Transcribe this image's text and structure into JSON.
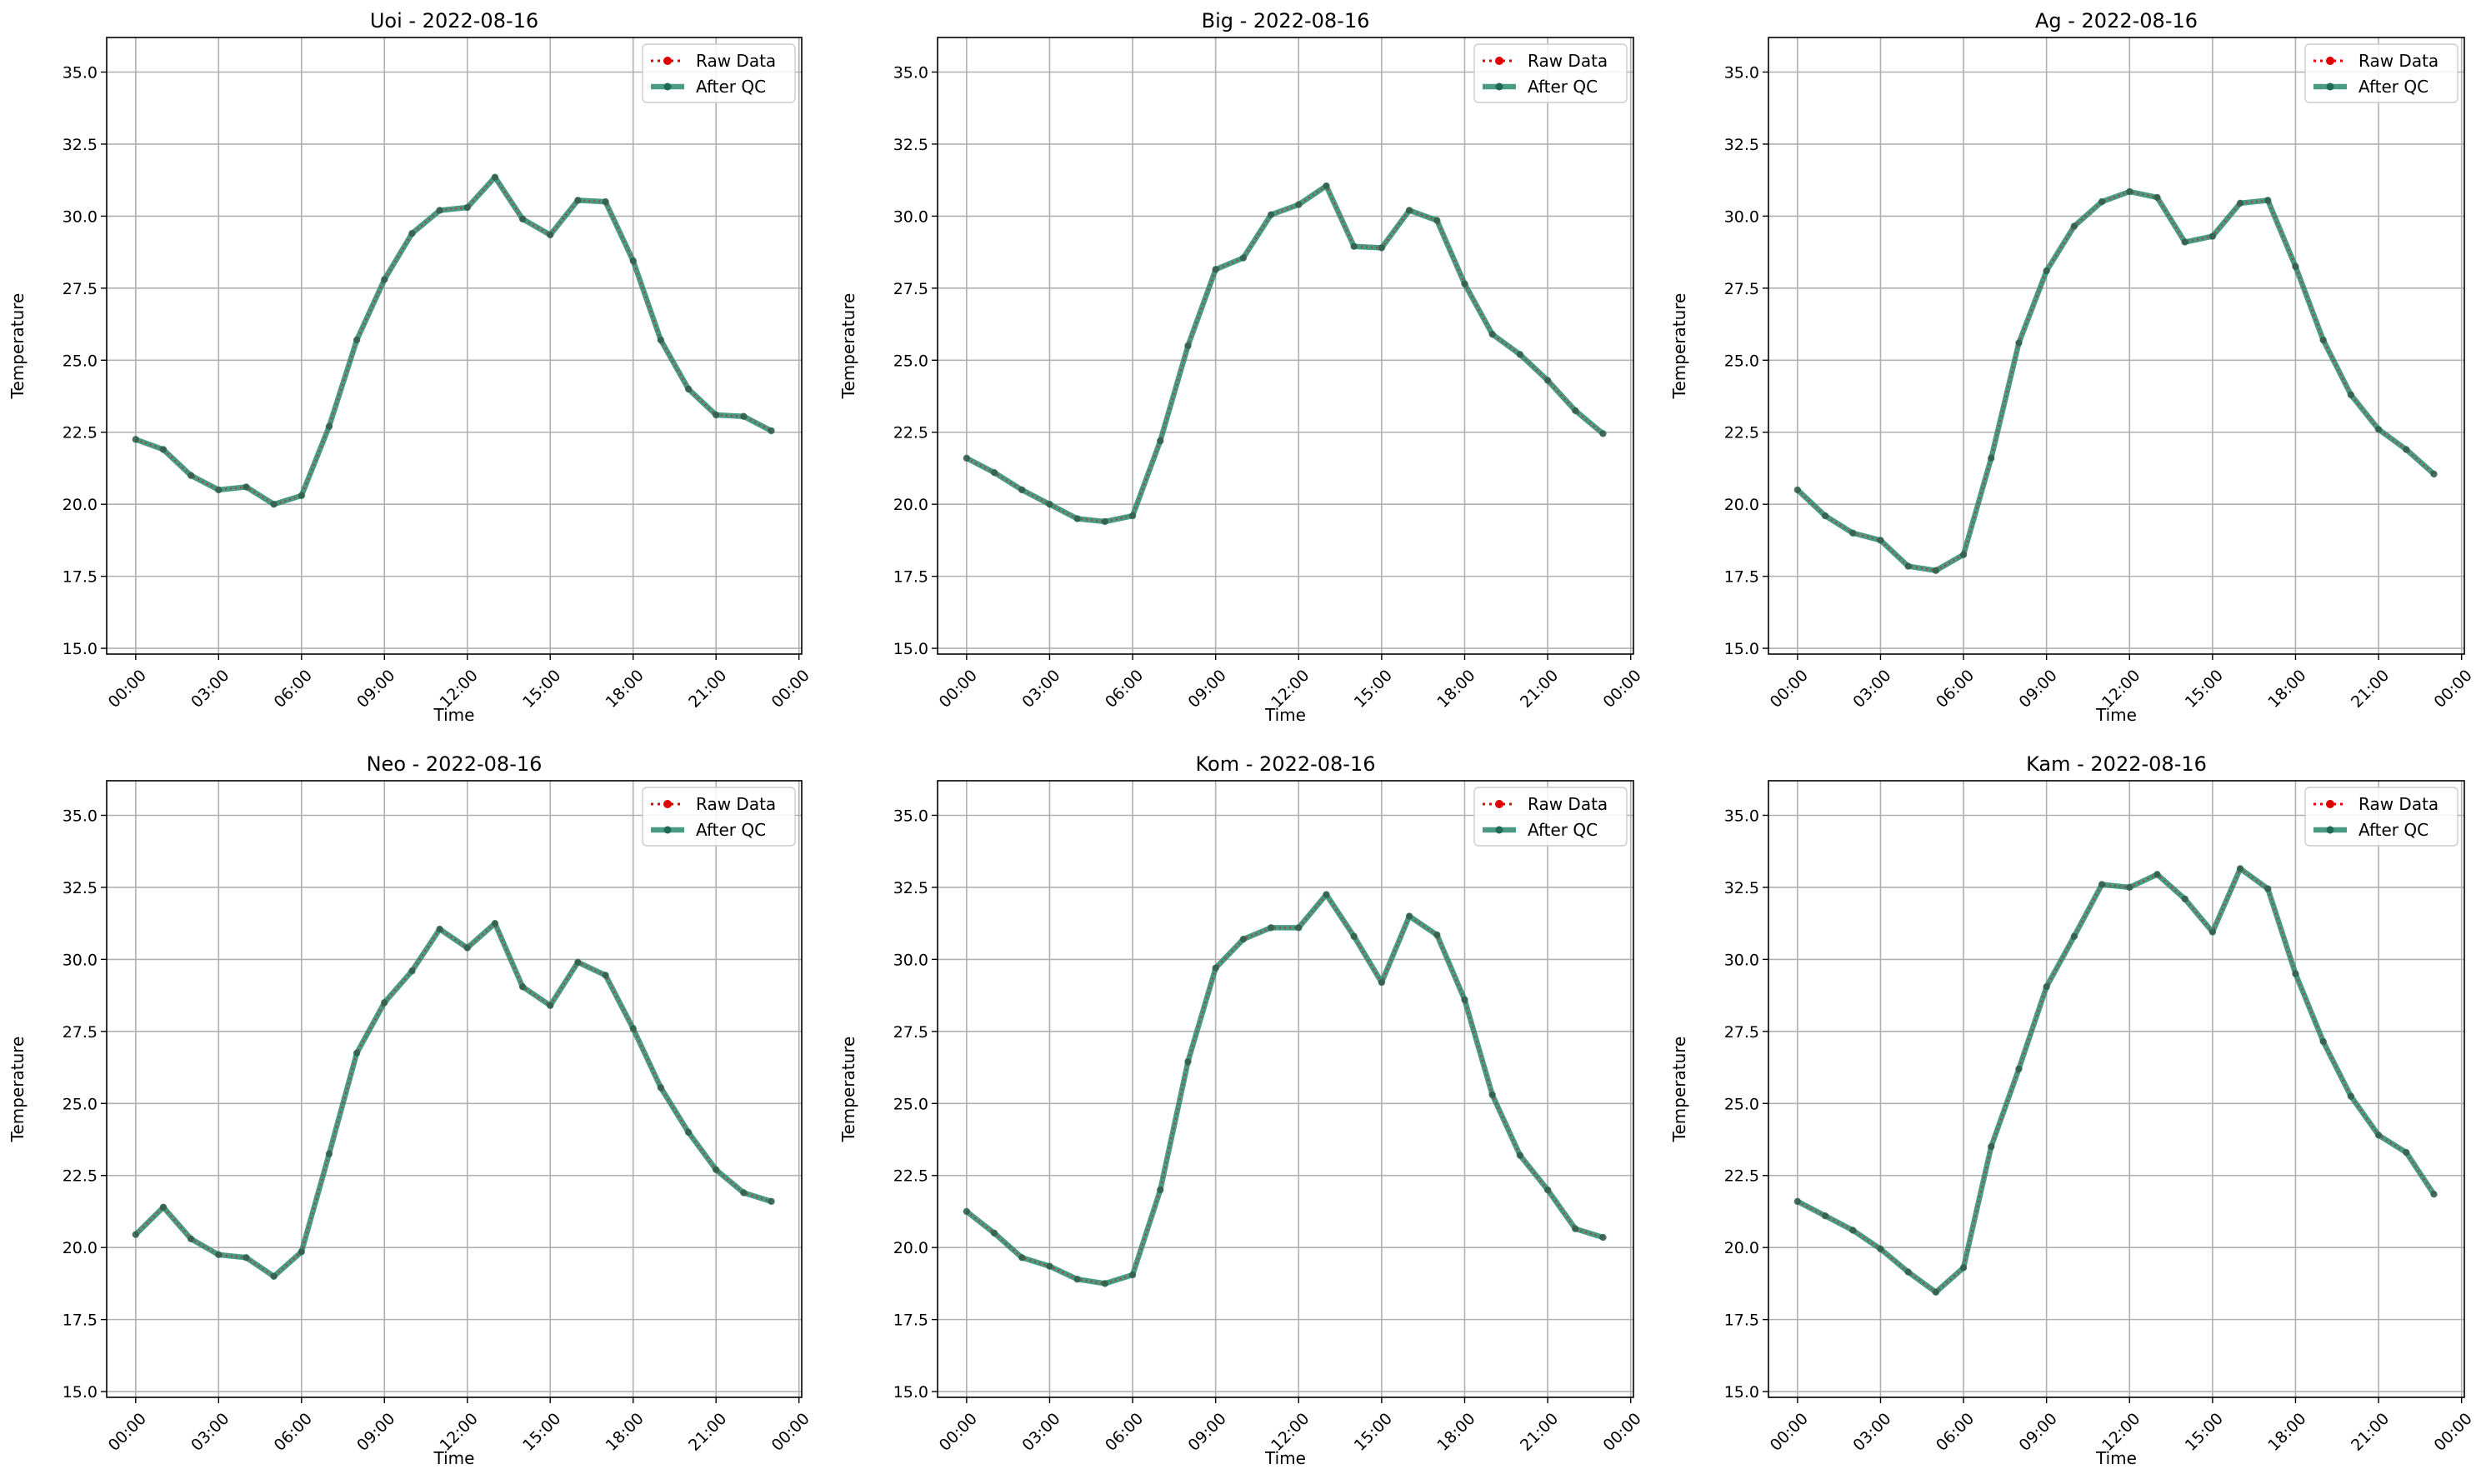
{
  "figure": {
    "background": "#ffffff"
  },
  "style": {
    "raw_color": "#e00000",
    "qc_color": "#2a8a6e",
    "grid_color": "#b0b0b0"
  },
  "chart_data": [
    {
      "type": "line",
      "title": "Uoi - 2022-08-16",
      "xlabel": "Time",
      "ylabel": "Temperature",
      "ylim": [
        14.8,
        36.2
      ],
      "xlim_hours": [
        -1.05,
        24.1
      ],
      "x_ticks": [
        "00:00",
        "03:00",
        "06:00",
        "09:00",
        "12:00",
        "15:00",
        "18:00",
        "21:00",
        "00:00"
      ],
      "y_ticks": [
        "15.0",
        "17.5",
        "20.0",
        "22.5",
        "25.0",
        "27.5",
        "30.0",
        "32.5",
        "35.0"
      ],
      "grid": true,
      "legend": {
        "position": "top-right",
        "entries": [
          "Raw Data",
          "After QC"
        ]
      },
      "x": [
        "00:00",
        "01:00",
        "02:00",
        "03:00",
        "04:00",
        "05:00",
        "06:00",
        "07:00",
        "08:00",
        "09:00",
        "10:00",
        "11:00",
        "12:00",
        "13:00",
        "14:00",
        "15:00",
        "16:00",
        "17:00",
        "18:00",
        "19:00",
        "20:00",
        "21:00",
        "22:00",
        "23:00"
      ],
      "series": [
        {
          "name": "Raw Data",
          "values": [
            22.25,
            21.9,
            21.0,
            20.5,
            20.6,
            20.0,
            20.3,
            22.7,
            25.7,
            27.8,
            29.4,
            30.2,
            30.3,
            31.35,
            29.9,
            29.35,
            30.55,
            30.5,
            28.45,
            25.7,
            24.0,
            23.1,
            23.05,
            22.55
          ]
        },
        {
          "name": "After QC",
          "values": [
            22.25,
            21.9,
            21.0,
            20.5,
            20.6,
            20.0,
            20.3,
            22.7,
            25.7,
            27.8,
            29.4,
            30.2,
            30.3,
            31.35,
            29.9,
            29.35,
            30.55,
            30.5,
            28.45,
            25.7,
            24.0,
            23.1,
            23.05,
            22.55
          ]
        }
      ]
    },
    {
      "type": "line",
      "title": "Big - 2022-08-16",
      "xlabel": "Time",
      "ylabel": "Temperature",
      "ylim": [
        14.8,
        36.2
      ],
      "xlim_hours": [
        -1.05,
        24.1
      ],
      "x_ticks": [
        "00:00",
        "03:00",
        "06:00",
        "09:00",
        "12:00",
        "15:00",
        "18:00",
        "21:00",
        "00:00"
      ],
      "y_ticks": [
        "15.0",
        "17.5",
        "20.0",
        "22.5",
        "25.0",
        "27.5",
        "30.0",
        "32.5",
        "35.0"
      ],
      "grid": true,
      "legend": {
        "position": "top-right",
        "entries": [
          "Raw Data",
          "After QC"
        ]
      },
      "x": [
        "00:00",
        "01:00",
        "02:00",
        "03:00",
        "04:00",
        "05:00",
        "06:00",
        "07:00",
        "08:00",
        "09:00",
        "10:00",
        "11:00",
        "12:00",
        "13:00",
        "14:00",
        "15:00",
        "16:00",
        "17:00",
        "18:00",
        "19:00",
        "20:00",
        "21:00",
        "22:00",
        "23:00"
      ],
      "series": [
        {
          "name": "Raw Data",
          "values": [
            21.6,
            21.1,
            20.5,
            20.0,
            19.5,
            19.4,
            19.6,
            22.2,
            25.5,
            28.15,
            28.55,
            30.05,
            30.4,
            31.05,
            28.95,
            28.9,
            30.2,
            29.85,
            27.65,
            25.9,
            25.2,
            24.3,
            23.25,
            22.45
          ]
        },
        {
          "name": "After QC",
          "values": [
            21.6,
            21.1,
            20.5,
            20.0,
            19.5,
            19.4,
            19.6,
            22.2,
            25.5,
            28.15,
            28.55,
            30.05,
            30.4,
            31.05,
            28.95,
            28.9,
            30.2,
            29.85,
            27.65,
            25.9,
            25.2,
            24.3,
            23.25,
            22.45
          ]
        }
      ]
    },
    {
      "type": "line",
      "title": "Ag - 2022-08-16",
      "xlabel": "Time",
      "ylabel": "Temperature",
      "ylim": [
        14.8,
        36.2
      ],
      "xlim_hours": [
        -1.05,
        24.1
      ],
      "x_ticks": [
        "00:00",
        "03:00",
        "06:00",
        "09:00",
        "12:00",
        "15:00",
        "18:00",
        "21:00",
        "00:00"
      ],
      "y_ticks": [
        "15.0",
        "17.5",
        "20.0",
        "22.5",
        "25.0",
        "27.5",
        "30.0",
        "32.5",
        "35.0"
      ],
      "grid": true,
      "legend": {
        "position": "top-right",
        "entries": [
          "Raw Data",
          "After QC"
        ]
      },
      "x": [
        "00:00",
        "01:00",
        "02:00",
        "03:00",
        "04:00",
        "05:00",
        "06:00",
        "07:00",
        "08:00",
        "09:00",
        "10:00",
        "11:00",
        "12:00",
        "13:00",
        "14:00",
        "15:00",
        "16:00",
        "17:00",
        "18:00",
        "19:00",
        "20:00",
        "21:00",
        "22:00",
        "23:00"
      ],
      "series": [
        {
          "name": "Raw Data",
          "values": [
            20.5,
            19.6,
            19.0,
            18.75,
            17.85,
            17.7,
            18.25,
            21.6,
            25.6,
            28.1,
            29.65,
            30.5,
            30.85,
            30.65,
            29.1,
            29.3,
            30.45,
            30.55,
            28.25,
            25.7,
            23.8,
            22.6,
            21.9,
            21.05
          ]
        },
        {
          "name": "After QC",
          "values": [
            20.5,
            19.6,
            19.0,
            18.75,
            17.85,
            17.7,
            18.25,
            21.6,
            25.6,
            28.1,
            29.65,
            30.5,
            30.85,
            30.65,
            29.1,
            29.3,
            30.45,
            30.55,
            28.25,
            25.7,
            23.8,
            22.6,
            21.9,
            21.05
          ]
        }
      ]
    },
    {
      "type": "line",
      "title": "Neo - 2022-08-16",
      "xlabel": "Time",
      "ylabel": "Temperature",
      "ylim": [
        14.8,
        36.2
      ],
      "xlim_hours": [
        -1.05,
        24.1
      ],
      "x_ticks": [
        "00:00",
        "03:00",
        "06:00",
        "09:00",
        "12:00",
        "15:00",
        "18:00",
        "21:00",
        "00:00"
      ],
      "y_ticks": [
        "15.0",
        "17.5",
        "20.0",
        "22.5",
        "25.0",
        "27.5",
        "30.0",
        "32.5",
        "35.0"
      ],
      "grid": true,
      "legend": {
        "position": "top-right",
        "entries": [
          "Raw Data",
          "After QC"
        ]
      },
      "x": [
        "00:00",
        "01:00",
        "02:00",
        "03:00",
        "04:00",
        "05:00",
        "06:00",
        "07:00",
        "08:00",
        "09:00",
        "10:00",
        "11:00",
        "12:00",
        "13:00",
        "14:00",
        "15:00",
        "16:00",
        "17:00",
        "18:00",
        "19:00",
        "20:00",
        "21:00",
        "22:00",
        "23:00"
      ],
      "series": [
        {
          "name": "Raw Data",
          "values": [
            20.45,
            21.4,
            20.3,
            19.75,
            19.65,
            19.0,
            19.85,
            23.25,
            26.75,
            28.5,
            29.6,
            31.05,
            30.4,
            31.25,
            29.05,
            28.4,
            29.9,
            29.45,
            27.6,
            25.55,
            24.0,
            22.7,
            21.9,
            21.6
          ]
        },
        {
          "name": "After QC",
          "values": [
            20.45,
            21.4,
            20.3,
            19.75,
            19.65,
            19.0,
            19.85,
            23.25,
            26.75,
            28.5,
            29.6,
            31.05,
            30.4,
            31.25,
            29.05,
            28.4,
            29.9,
            29.45,
            27.6,
            25.55,
            24.0,
            22.7,
            21.9,
            21.6
          ]
        }
      ]
    },
    {
      "type": "line",
      "title": "Kom - 2022-08-16",
      "xlabel": "Time",
      "ylabel": "Temperature",
      "ylim": [
        14.8,
        36.2
      ],
      "xlim_hours": [
        -1.05,
        24.1
      ],
      "x_ticks": [
        "00:00",
        "03:00",
        "06:00",
        "09:00",
        "12:00",
        "15:00",
        "18:00",
        "21:00",
        "00:00"
      ],
      "y_ticks": [
        "15.0",
        "17.5",
        "20.0",
        "22.5",
        "25.0",
        "27.5",
        "30.0",
        "32.5",
        "35.0"
      ],
      "grid": true,
      "legend": {
        "position": "top-right",
        "entries": [
          "Raw Data",
          "After QC"
        ]
      },
      "x": [
        "00:00",
        "01:00",
        "02:00",
        "03:00",
        "04:00",
        "05:00",
        "06:00",
        "07:00",
        "08:00",
        "09:00",
        "10:00",
        "11:00",
        "12:00",
        "13:00",
        "14:00",
        "15:00",
        "16:00",
        "17:00",
        "18:00",
        "19:00",
        "20:00",
        "21:00",
        "22:00",
        "23:00"
      ],
      "series": [
        {
          "name": "Raw Data",
          "values": [
            21.25,
            20.5,
            19.65,
            19.35,
            18.9,
            18.75,
            19.05,
            22.0,
            26.45,
            29.7,
            30.7,
            31.1,
            31.1,
            32.25,
            30.8,
            29.2,
            31.5,
            30.85,
            28.6,
            25.3,
            23.2,
            22.0,
            20.65,
            20.35
          ]
        },
        {
          "name": "After QC",
          "values": [
            21.25,
            20.5,
            19.65,
            19.35,
            18.9,
            18.75,
            19.05,
            22.0,
            26.45,
            29.7,
            30.7,
            31.1,
            31.1,
            32.25,
            30.8,
            29.2,
            31.5,
            30.85,
            28.6,
            25.3,
            23.2,
            22.0,
            20.65,
            20.35
          ]
        }
      ]
    },
    {
      "type": "line",
      "title": "Kam - 2022-08-16",
      "xlabel": "Time",
      "ylabel": "Temperature",
      "ylim": [
        14.8,
        36.2
      ],
      "xlim_hours": [
        -1.05,
        24.1
      ],
      "x_ticks": [
        "00:00",
        "03:00",
        "06:00",
        "09:00",
        "12:00",
        "15:00",
        "18:00",
        "21:00",
        "00:00"
      ],
      "y_ticks": [
        "15.0",
        "17.5",
        "20.0",
        "22.5",
        "25.0",
        "27.5",
        "30.0",
        "32.5",
        "35.0"
      ],
      "grid": true,
      "legend": {
        "position": "top-right",
        "entries": [
          "Raw Data",
          "After QC"
        ]
      },
      "x": [
        "00:00",
        "01:00",
        "02:00",
        "03:00",
        "04:00",
        "05:00",
        "06:00",
        "07:00",
        "08:00",
        "09:00",
        "10:00",
        "11:00",
        "12:00",
        "13:00",
        "14:00",
        "15:00",
        "16:00",
        "17:00",
        "18:00",
        "19:00",
        "20:00",
        "21:00",
        "22:00",
        "23:00"
      ],
      "series": [
        {
          "name": "Raw Data",
          "values": [
            21.6,
            21.1,
            20.6,
            19.95,
            19.15,
            18.45,
            19.3,
            23.5,
            26.2,
            29.05,
            30.8,
            32.6,
            32.5,
            32.95,
            32.1,
            30.95,
            33.15,
            32.45,
            29.5,
            27.15,
            25.25,
            23.9,
            23.3,
            21.85
          ]
        },
        {
          "name": "After QC",
          "values": [
            21.6,
            21.1,
            20.6,
            19.95,
            19.15,
            18.45,
            19.3,
            23.5,
            26.2,
            29.05,
            30.8,
            32.6,
            32.5,
            32.95,
            32.1,
            30.95,
            33.15,
            32.45,
            29.5,
            27.15,
            25.25,
            23.9,
            23.3,
            21.85
          ]
        }
      ]
    }
  ]
}
